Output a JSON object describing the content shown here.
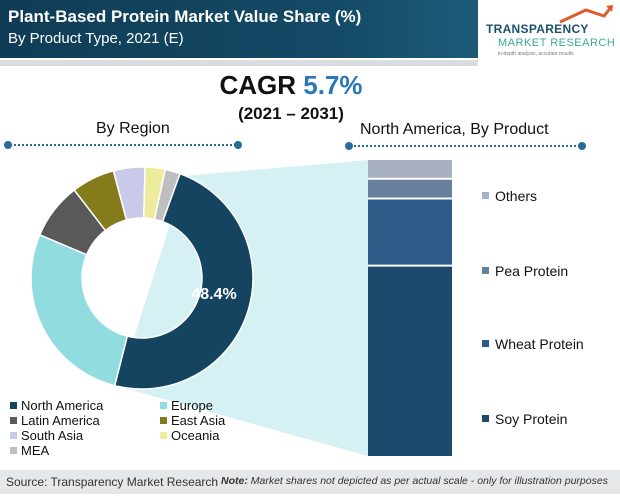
{
  "header": {
    "title": "Plant-Based Protein Market Value Share (%)",
    "subtitle": "By Product Type, 2021 (E)"
  },
  "logo": {
    "line1": "TRANSPARENCY",
    "line2": "MARKET RESEARCH",
    "line3": "in-depth analysis, accurate results"
  },
  "cagr": {
    "label": "CAGR",
    "value": "5.7%",
    "period": "(2021 – 2031)"
  },
  "colors": {
    "north_america": "#14445f",
    "europe": "#91dcdf",
    "latin_america": "#595959",
    "east_asia": "#847b1d",
    "south_asia": "#c9c9e9",
    "oceania": "#ecec9c",
    "mea": "#bfbfbf",
    "soy": "#1c4a6c",
    "wheat": "#2b5b86",
    "pea": "#66809e",
    "others": "#a7b1c2",
    "connector": "#c8ecef"
  },
  "chart_data": [
    {
      "type": "pie",
      "title": "By Region",
      "center_label": "48.4%",
      "categories": [
        "North America",
        "Europe",
        "Latin America",
        "East Asia",
        "South Asia",
        "Oceania",
        "MEA"
      ],
      "values": [
        48.4,
        27.4,
        8.2,
        6.3,
        4.6,
        2.9,
        2.2
      ],
      "legend": [
        "North America",
        "Europe",
        "Latin America",
        "East Asia",
        "South Asia",
        "Oceania",
        "MEA"
      ]
    },
    {
      "type": "bar",
      "title": "North America, By Product",
      "stacked": true,
      "categories": [
        "Soy Protein",
        "Wheat Protein",
        "Pea Protein",
        "Others"
      ],
      "values": [
        64,
        22,
        6,
        6
      ]
    }
  ],
  "footer": {
    "source": "Source: Transparency Market Research",
    "note_prefix": "Note:",
    "note_text": " Market shares not depicted as per actual scale - only for illustration purposes"
  }
}
